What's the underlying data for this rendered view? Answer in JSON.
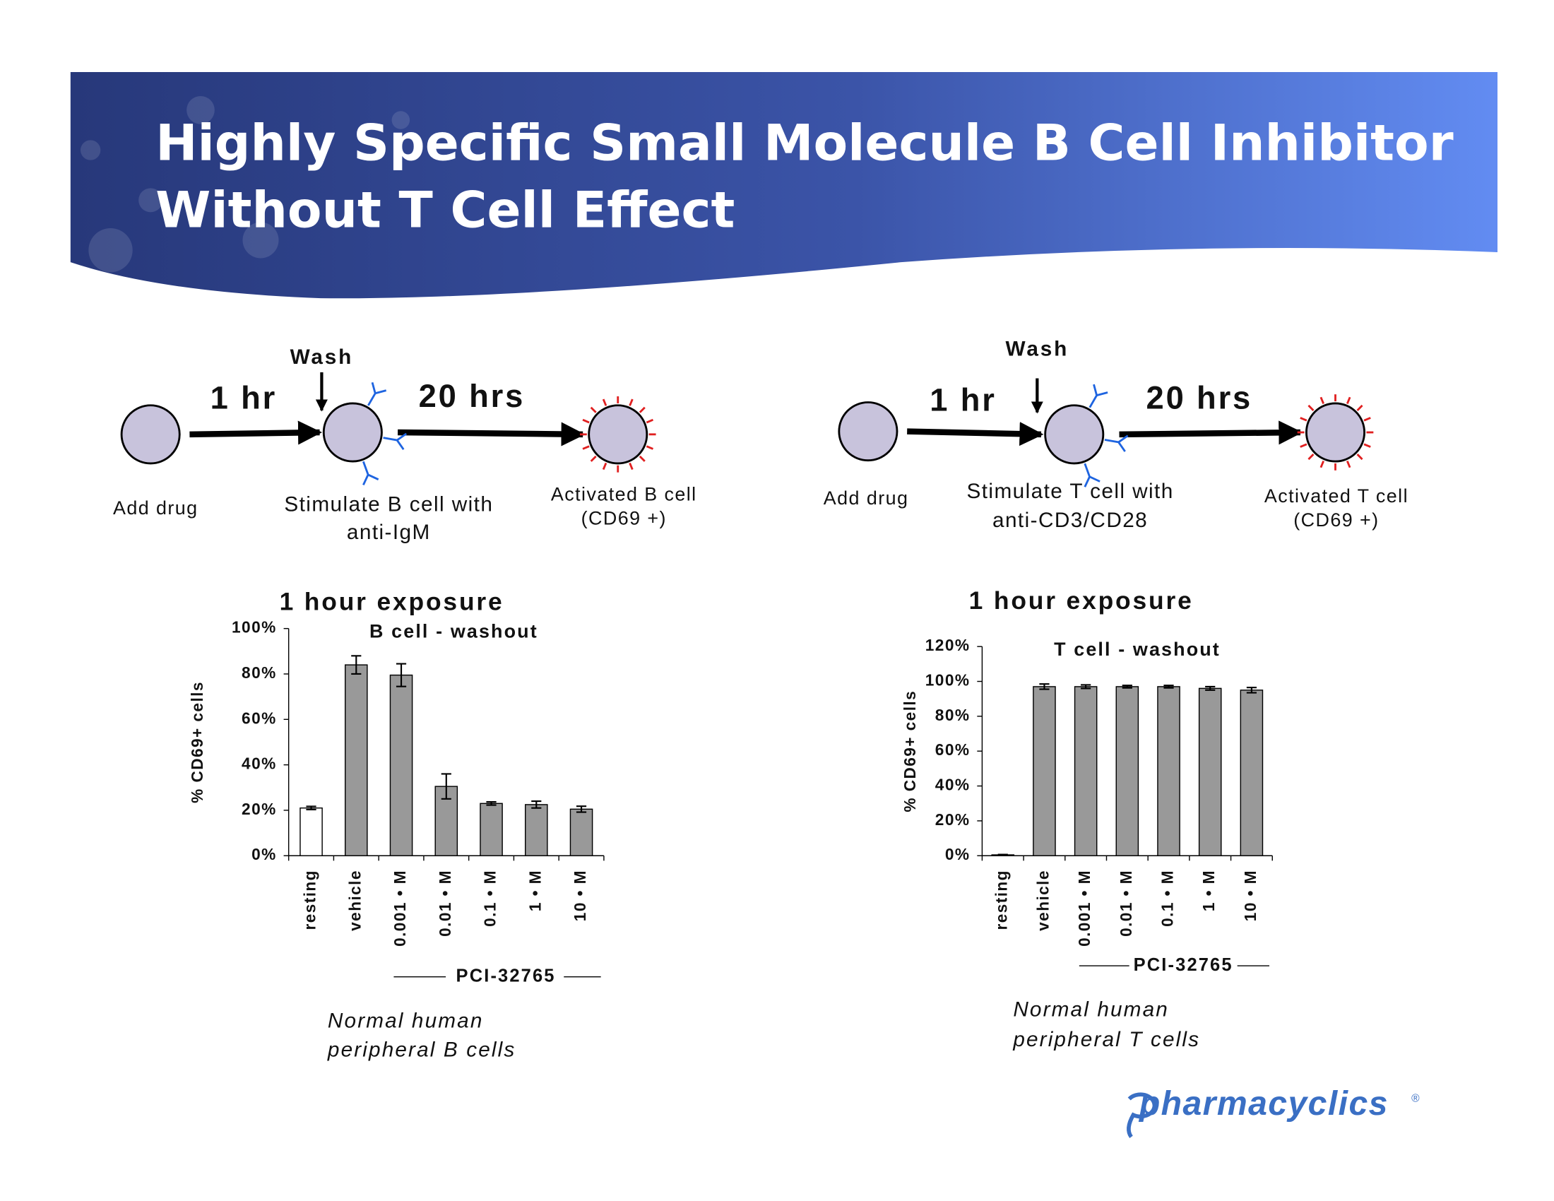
{
  "header": {
    "title": [
      "Highly Specific Small Molecule B Cell Inhibitor",
      "Without T Cell Effect"
    ]
  },
  "diagrams": [
    {
      "wash": "Wash",
      "step1": "1 hr",
      "step2": "20 hrs",
      "start": "Add drug",
      "stimulate": [
        "Stimulate B cell with",
        "anti-IgM"
      ],
      "result": [
        "Activated B cell",
        "(CD69 +)"
      ]
    },
    {
      "wash": "Wash",
      "step1": "1 hr",
      "step2": "20 hrs",
      "start": "Add drug",
      "stimulate": [
        "Stimulate T cell with",
        "anti-CD3/CD28"
      ],
      "result": [
        "Activated T cell",
        "(CD69 +)"
      ]
    }
  ],
  "chart_data": [
    {
      "type": "bar",
      "title": "1 hour exposure",
      "subtitle": "B cell - washout",
      "y_label": "% CD69+ cells",
      "categories": [
        "resting",
        "vehicle",
        "0.001 • M",
        "0.01 • M",
        "0.1 • M",
        "1 • M",
        "10 • M"
      ],
      "values": [
        21,
        84,
        79.5,
        30.5,
        23,
        22.5,
        20.5
      ],
      "errors": [
        0.7,
        4,
        5,
        5.5,
        0.7,
        1.5,
        1.3
      ],
      "colors": [
        "#ffffff",
        "#999999",
        "#999999",
        "#999999",
        "#999999",
        "#999999",
        "#999999"
      ],
      "ylim": [
        0,
        100
      ],
      "yticks": [
        {
          "value": 0,
          "label": "0%"
        },
        {
          "value": 20,
          "label": "20%"
        },
        {
          "value": 40,
          "label": "40%"
        },
        {
          "value": 60,
          "label": "60%"
        },
        {
          "value": 80,
          "label": "80%"
        },
        {
          "value": 100,
          "label": "100%"
        }
      ],
      "group_label": "PCI-32765",
      "caption": [
        "Normal human",
        "peripheral B cells"
      ],
      "grid": false
    },
    {
      "type": "bar",
      "title": "1 hour exposure",
      "subtitle": "T cell - washout",
      "y_label": "% CD69+ cells",
      "categories": [
        "resting",
        "vehicle",
        "0.001 • M",
        "0.01 • M",
        "0.1 • M",
        "1 • M",
        "10 • M"
      ],
      "values": [
        0.5,
        97,
        97,
        97,
        97,
        96,
        95
      ],
      "errors": [
        0.2,
        1.5,
        1,
        0.7,
        0.7,
        1,
        1.5
      ],
      "colors": [
        "#ffffff",
        "#999999",
        "#999999",
        "#999999",
        "#999999",
        "#999999",
        "#999999"
      ],
      "ylim": [
        0,
        120
      ],
      "yticks": [
        {
          "value": 0,
          "label": "0%"
        },
        {
          "value": 20,
          "label": "20%"
        },
        {
          "value": 40,
          "label": "40%"
        },
        {
          "value": 60,
          "label": "60%"
        },
        {
          "value": 80,
          "label": "80%"
        },
        {
          "value": 100,
          "label": "100%"
        },
        {
          "value": 120,
          "label": "120%"
        }
      ],
      "group_label": "PCI-32765",
      "caption": [
        "Normal human",
        "peripheral T cells"
      ],
      "grid": false
    }
  ],
  "logo": {
    "name": "pharmacyclics",
    "mark": "®"
  }
}
